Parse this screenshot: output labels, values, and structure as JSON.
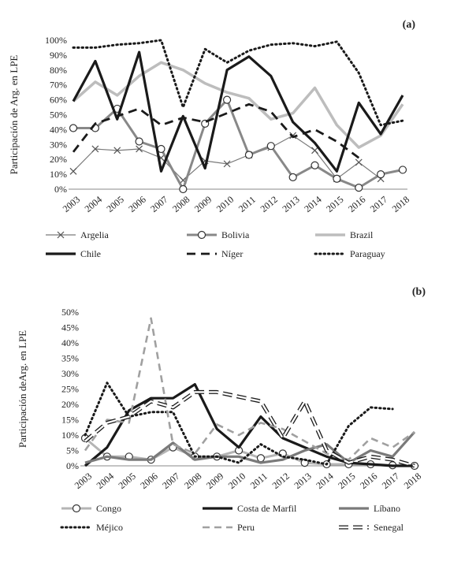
{
  "chart_data": [
    {
      "type": "line",
      "panel": "(a)",
      "ylabel": "Participación de Arg. en LPE",
      "ylim": [
        0,
        100
      ],
      "yticks": [
        "0%",
        "10%",
        "20%",
        "30%",
        "40%",
        "50%",
        "60%",
        "70%",
        "80%",
        "90%",
        "100%"
      ],
      "categories": [
        "2003",
        "2004",
        "2005",
        "2006",
        "2007",
        "2008",
        "2009",
        "2010",
        "2011",
        "2012",
        "2013",
        "2014",
        "2015",
        "2016",
        "2017",
        "2018"
      ],
      "series": [
        {
          "name": "Argelia",
          "style": "x-marker",
          "color": "#7a7a7a",
          "values": [
            12,
            27,
            26,
            27,
            21,
            6,
            19,
            17,
            23,
            28,
            36,
            26,
            7,
            18,
            7,
            null
          ]
        },
        {
          "name": "Bolivia",
          "style": "circle-marker",
          "color": "#888888",
          "values": [
            41,
            41,
            54,
            32,
            27,
            0,
            44,
            60,
            23,
            29,
            8,
            16,
            7,
            1,
            10,
            13
          ]
        },
        {
          "name": "Brazil",
          "style": "thick-light",
          "color": "#bdbdbd",
          "values": [
            59,
            72,
            63,
            76,
            85,
            80,
            71,
            65,
            61,
            47,
            51,
            68,
            43,
            28,
            36,
            57
          ]
        },
        {
          "name": "Chile",
          "style": "thick-solid",
          "color": "#1a1a1a",
          "values": [
            59,
            86,
            47,
            92,
            12,
            49,
            14,
            80,
            89,
            76,
            45,
            31,
            12,
            58,
            37,
            63
          ]
        },
        {
          "name": "Níger",
          "style": "long-dash",
          "color": "#1a1a1a",
          "values": [
            25,
            44,
            49,
            54,
            43,
            48,
            45,
            51,
            57,
            52,
            35,
            40,
            32,
            21,
            null,
            null
          ]
        },
        {
          "name": "Paraguay",
          "style": "dotted",
          "color": "#1a1a1a",
          "values": [
            95,
            95,
            97,
            98,
            100,
            55,
            94,
            85,
            93,
            97,
            98,
            96,
            99,
            78,
            43,
            46
          ]
        }
      ]
    },
    {
      "type": "line",
      "panel": "(b)",
      "ylabel": "Participación deArg. en LPE",
      "ylim": [
        0,
        50
      ],
      "yticks": [
        "0%",
        "5%",
        "10%",
        "15%",
        "20%",
        "25%",
        "30%",
        "35%",
        "40%",
        "45%",
        "50%"
      ],
      "categories": [
        "2003",
        "2004",
        "2005",
        "2006",
        "2007",
        "2008",
        "2009",
        "2010",
        "2011",
        "2012",
        "2013",
        "2014",
        "2015",
        "2016",
        "2017",
        "2018"
      ],
      "series": [
        {
          "name": "Congo",
          "style": "circle-marker",
          "color": "#b5b5b5",
          "values": [
            9,
            3,
            3,
            2,
            6,
            3,
            3,
            5,
            2.5,
            4,
            1,
            0.5,
            0.5,
            0.5,
            0.2,
            0
          ]
        },
        {
          "name": "Costa de Marfil",
          "style": "thick-solid",
          "color": "#1a1a1a",
          "values": [
            0,
            6,
            18,
            22,
            22,
            26.5,
            12,
            6,
            16,
            9,
            6,
            3,
            1,
            0.5,
            0,
            0
          ]
        },
        {
          "name": "Líbano",
          "style": "thick-gray",
          "color": "#7a7a7a",
          "values": [
            1,
            3,
            2,
            2,
            7.5,
            2,
            3,
            3,
            1,
            2,
            5,
            7,
            1,
            5,
            3,
            11
          ]
        },
        {
          "name": "Méjico",
          "style": "dotted",
          "color": "#1a1a1a",
          "values": [
            10,
            27,
            16,
            17.5,
            17.5,
            3,
            3,
            1,
            7,
            3,
            2,
            0.5,
            13,
            19,
            18.5,
            null
          ]
        },
        {
          "name": "Peru",
          "style": "dashed-gray",
          "color": "#a0a0a0",
          "values": [
            5,
            15,
            14,
            48,
            7,
            4,
            13.5,
            10,
            14,
            12,
            8,
            4,
            2,
            9,
            6,
            11
          ]
        },
        {
          "name": "Senegal",
          "style": "double-dash",
          "color": "#1a1a1a",
          "values": [
            8,
            14,
            16,
            21,
            19,
            24,
            24,
            22.5,
            21,
            9,
            21,
            5,
            1,
            3,
            2,
            0
          ]
        }
      ]
    }
  ]
}
